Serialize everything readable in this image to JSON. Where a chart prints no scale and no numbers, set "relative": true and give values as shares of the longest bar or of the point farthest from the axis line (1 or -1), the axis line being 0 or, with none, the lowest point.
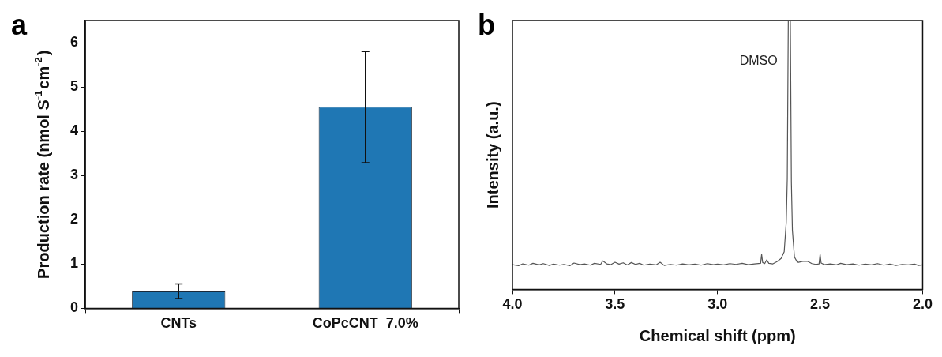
{
  "chart_data": [
    {
      "type": "bar",
      "title": "a",
      "ylabel": "Production rate (nmol S$^{-1}$cm$^{-2}$)",
      "categories": [
        "CNTs",
        "CoPcCNT_7.0%"
      ],
      "values": [
        0.38,
        4.55
      ],
      "errors": [
        [
          0.22,
          0.55
        ],
        [
          3.29,
          5.8
        ]
      ],
      "color": "#1f77b4",
      "ylim": [
        0,
        6.5
      ],
      "yticks": [
        0,
        1,
        2,
        3,
        4,
        5,
        6
      ]
    },
    {
      "type": "line",
      "title": "b",
      "xlabel": "Chemical shift (ppm)",
      "ylabel": "Intensity (a.u.)",
      "relative": true,
      "xlim": [
        4.0,
        2.0
      ],
      "xticks": [
        {
          "value": 4,
          "label": "4.0"
        },
        3.5,
        {
          "value": 3,
          "label": "3.0"
        },
        2.5,
        {
          "value": 2,
          "label": "2.0"
        }
      ],
      "annotations": [
        "DMSO"
      ],
      "x": [
        4.0,
        3.97,
        3.95,
        3.92,
        3.9,
        3.87,
        3.85,
        3.82,
        3.8,
        3.77,
        3.75,
        3.72,
        3.7,
        3.67,
        3.65,
        3.62,
        3.6,
        3.57,
        3.56,
        3.54,
        3.52,
        3.5,
        3.48,
        3.46,
        3.44,
        3.42,
        3.4,
        3.38,
        3.36,
        3.33,
        3.3,
        3.28,
        3.26,
        3.23,
        3.2,
        3.17,
        3.14,
        3.11,
        3.08,
        3.05,
        3.02,
        3.0,
        2.97,
        2.94,
        2.91,
        2.88,
        2.85,
        2.82,
        2.79,
        2.785,
        2.78,
        2.77,
        2.76,
        2.75,
        2.73,
        2.71,
        2.69,
        2.675,
        2.665,
        2.66,
        2.655,
        2.645,
        2.64,
        2.635,
        2.625,
        2.61,
        2.58,
        2.56,
        2.54,
        2.52,
        2.505,
        2.5,
        2.495,
        2.48,
        2.45,
        2.42,
        2.4,
        2.37,
        2.34,
        2.31,
        2.28,
        2.25,
        2.22,
        2.19,
        2.16,
        2.13,
        2.1,
        2.07,
        2.04,
        2.02,
        2.0
      ],
      "series": [
        {
          "color": "#555555",
          "values": [
            0.092,
            0.088,
            0.095,
            0.09,
            0.097,
            0.091,
            0.096,
            0.089,
            0.094,
            0.09,
            0.093,
            0.088,
            0.098,
            0.092,
            0.095,
            0.09,
            0.097,
            0.093,
            0.106,
            0.095,
            0.092,
            0.101,
            0.094,
            0.099,
            0.091,
            0.1,
            0.093,
            0.097,
            0.09,
            0.094,
            0.091,
            0.101,
            0.089,
            0.093,
            0.09,
            0.095,
            0.091,
            0.094,
            0.09,
            0.096,
            0.092,
            0.094,
            0.091,
            0.096,
            0.093,
            0.097,
            0.092,
            0.095,
            0.097,
            0.13,
            0.1,
            0.096,
            0.11,
            0.097,
            0.095,
            0.103,
            0.115,
            0.14,
            0.25,
            0.41,
            1.0,
            1.0,
            0.4,
            0.22,
            0.12,
            0.1,
            0.105,
            0.104,
            0.096,
            0.093,
            0.095,
            0.13,
            0.098,
            0.092,
            0.095,
            0.091,
            0.097,
            0.092,
            0.095,
            0.09,
            0.094,
            0.091,
            0.096,
            0.09,
            0.094,
            0.089,
            0.093,
            0.091,
            0.094,
            0.089,
            0.091
          ]
        }
      ]
    }
  ]
}
